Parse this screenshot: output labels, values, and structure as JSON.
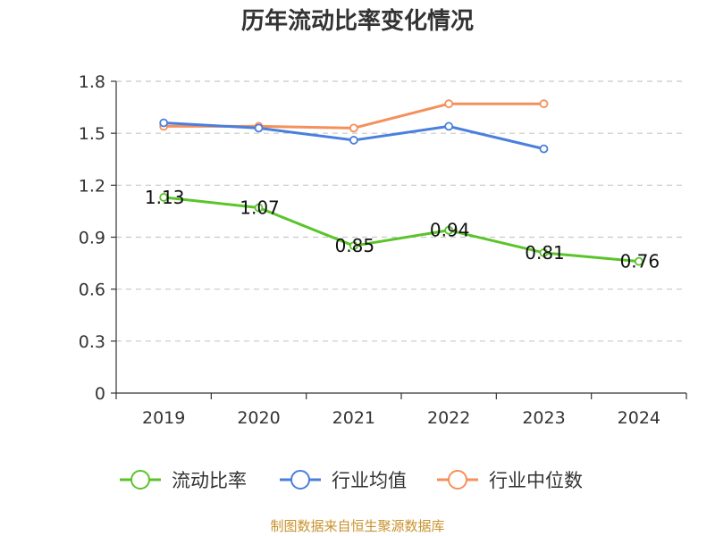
{
  "chart_data": {
    "type": "line",
    "title": "历年流动比率变化情况",
    "categories": [
      "2019",
      "2020",
      "2021",
      "2022",
      "2023",
      "2024"
    ],
    "ylim": [
      0,
      1.8
    ],
    "yticks": [
      "0",
      "0.3",
      "0.6",
      "0.9",
      "1.2",
      "1.5",
      "1.8"
    ],
    "ytick_values": [
      0,
      0.3,
      0.6,
      0.9,
      1.2,
      1.5,
      1.8
    ],
    "grid": true,
    "legend_position": "bottom",
    "series": [
      {
        "name": "流动比率",
        "color": "#5bc42a",
        "values": [
          1.13,
          1.07,
          0.85,
          0.94,
          0.81,
          0.76
        ],
        "labels": [
          "1.13",
          "1.07",
          "0.85",
          "0.94",
          "0.81",
          "0.76"
        ]
      },
      {
        "name": "行业均值",
        "color": "#4a7fdc",
        "values": [
          1.56,
          1.53,
          1.46,
          1.54,
          1.41,
          null
        ]
      },
      {
        "name": "行业中位数",
        "color": "#f5905a",
        "values": [
          1.54,
          1.54,
          1.53,
          1.67,
          1.67,
          null
        ]
      }
    ]
  },
  "footer": {
    "source": "制图数据来自恒生聚源数据库"
  }
}
